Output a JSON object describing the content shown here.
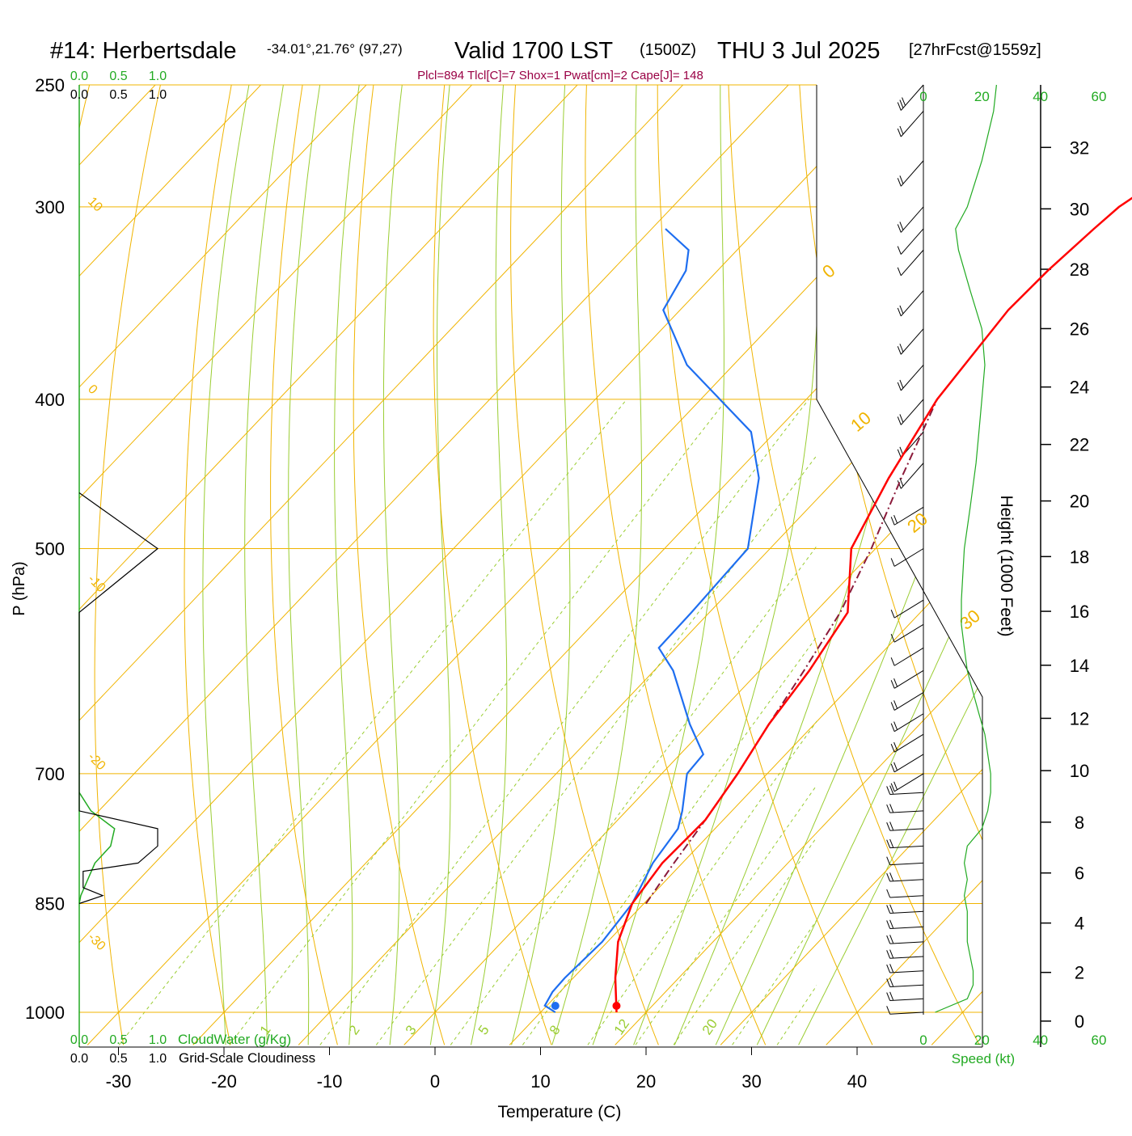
{
  "header": {
    "station": "#14: Herbertsdale",
    "coords": "-34.01°,21.76° (97,27)",
    "valid": "Valid 1700 LST",
    "utc": "(1500Z)",
    "date": "THU 3 Jul 2025",
    "fcst": "[27hrFcst@1559z]",
    "indices": "Plcl=894 Tlcl[C]=7 Shox=1 Pwat[cm]=2 Cape[J]= 148"
  },
  "colors": {
    "temperature": "#ff0000",
    "dewpoint": "#1e6ef0",
    "parcel": "#8b1a3a",
    "isotherm": "#f0b400",
    "dry_adiabat": "#f0b400",
    "moist_adiabat": "#9acd32",
    "mixing_ratio": "#9acd32",
    "cloudwater": "#22aa22",
    "cloudiness": "#000000",
    "speed": "#22aa22",
    "indices": "#990044"
  },
  "chart_data": {
    "type": "line",
    "title": "Skew-T log-P sounding",
    "xlabel": "Temperature (C)",
    "ylabel": "P (hPa)",
    "right_label": "Height (1000 Feet)",
    "x_ticks": [
      "-30",
      "-20",
      "-10",
      "0",
      "10",
      "20",
      "30",
      "40"
    ],
    "p_ticks": [
      "250",
      "300",
      "400",
      "500",
      "700",
      "850",
      "1000"
    ],
    "height_ticks": [
      "0",
      "2",
      "4",
      "6",
      "8",
      "10",
      "12",
      "14",
      "16",
      "18",
      "20",
      "22",
      "24",
      "26",
      "28",
      "30",
      "32"
    ],
    "isotherm_labels": [
      "10",
      "0",
      "-10",
      "-20",
      "-30"
    ],
    "dry_adiabat_labels": [
      "0",
      "10",
      "20",
      "30"
    ],
    "mixing_ratio_labels": [
      "1",
      "2",
      "3",
      "5",
      "8",
      "12",
      "20"
    ],
    "cloudwater": {
      "label": "CloudWater (g/Kg)",
      "ticks": [
        "0.0",
        "0.5",
        "1.0"
      ]
    },
    "cloudiness": {
      "label": "Grid-Scale Cloudiness",
      "ticks": [
        "0.0",
        "0.5",
        "1.0"
      ]
    },
    "speed": {
      "label": "Speed (kt)",
      "ticks": [
        "0",
        "20",
        "40",
        "60"
      ]
    },
    "temperature": [
      [
        1000,
        17.2
      ],
      [
        950,
        14
      ],
      [
        900,
        11
      ],
      [
        850,
        8.9
      ],
      [
        800,
        8.1
      ],
      [
        750,
        8.3
      ],
      [
        700,
        7.2
      ],
      [
        650,
        5.7
      ],
      [
        600,
        4.7
      ],
      [
        550,
        3.1
      ],
      [
        500,
        -2.3
      ],
      [
        450,
        -5.1
      ],
      [
        400,
        -7.6
      ],
      [
        350,
        -8.9
      ],
      [
        330,
        -8.7
      ],
      [
        310,
        -8.1
      ],
      [
        300,
        -7.7
      ],
      [
        280,
        -5.4
      ],
      [
        265,
        -4.4
      ],
      [
        257,
        -4.8
      ]
    ],
    "dewpoint": [
      [
        1000,
        11.4
      ],
      [
        990,
        9.8
      ],
      [
        970,
        9.3
      ],
      [
        950,
        9.2
      ],
      [
        900,
        9.5
      ],
      [
        850,
        8.9
      ],
      [
        800,
        7.2
      ],
      [
        760,
        6.5
      ],
      [
        740,
        5.3
      ],
      [
        700,
        2.4
      ],
      [
        680,
        2.2
      ],
      [
        650,
        -1.8
      ],
      [
        600,
        -8.2
      ],
      [
        580,
        -11.6
      ],
      [
        550,
        -11.7
      ],
      [
        500,
        -12.1
      ],
      [
        450,
        -17.4
      ],
      [
        420,
        -22.3
      ],
      [
        380,
        -34.4
      ],
      [
        350,
        -41.6
      ],
      [
        330,
        -43.0
      ],
      [
        320,
        -44.6
      ],
      [
        310,
        -48.7
      ]
    ],
    "parcel": [
      [
        850,
        10.2
      ],
      [
        800,
        9.2
      ],
      [
        750,
        8.3
      ],
      [
        700,
        7.2
      ],
      [
        650,
        5.7
      ],
      [
        600,
        4.2
      ],
      [
        550,
        2.4
      ],
      [
        500,
        -0.4
      ],
      [
        450,
        -3.9
      ],
      [
        400,
        -7.6
      ]
    ],
    "cloudwater_profile": [
      [
        850,
        0.0
      ],
      [
        840,
        0.02
      ],
      [
        800,
        0.2
      ],
      [
        780,
        0.4
      ],
      [
        760,
        0.45
      ],
      [
        740,
        0.15
      ],
      [
        720,
        0.0
      ]
    ],
    "cloudiness_profile": [
      [
        850,
        0.0
      ],
      [
        840,
        0.3
      ],
      [
        830,
        0.05
      ],
      [
        810,
        0.05
      ],
      [
        800,
        0.75
      ],
      [
        780,
        1.0
      ],
      [
        760,
        1.0
      ],
      [
        740,
        0.0
      ],
      [
        550,
        0.0
      ],
      [
        500,
        1.0
      ],
      [
        460,
        0.0
      ]
    ],
    "wind_speed_profile": [
      [
        1000,
        4
      ],
      [
        980,
        15
      ],
      [
        960,
        17
      ],
      [
        940,
        17
      ],
      [
        920,
        16
      ],
      [
        900,
        15
      ],
      [
        880,
        15
      ],
      [
        860,
        15
      ],
      [
        840,
        14
      ],
      [
        820,
        15
      ],
      [
        800,
        14
      ],
      [
        780,
        15
      ],
      [
        760,
        20
      ],
      [
        740,
        22
      ],
      [
        720,
        23
      ],
      [
        700,
        23
      ],
      [
        680,
        22
      ],
      [
        660,
        21
      ],
      [
        640,
        19
      ],
      [
        620,
        17
      ],
      [
        600,
        15
      ],
      [
        580,
        14
      ],
      [
        560,
        13
      ],
      [
        540,
        13
      ],
      [
        500,
        14
      ],
      [
        470,
        16
      ],
      [
        440,
        18
      ],
      [
        420,
        19
      ],
      [
        400,
        20
      ],
      [
        380,
        21
      ],
      [
        360,
        20
      ],
      [
        340,
        16
      ],
      [
        320,
        12
      ],
      [
        310,
        11
      ],
      [
        300,
        15
      ],
      [
        280,
        20
      ],
      [
        260,
        24
      ],
      [
        250,
        25
      ]
    ]
  }
}
